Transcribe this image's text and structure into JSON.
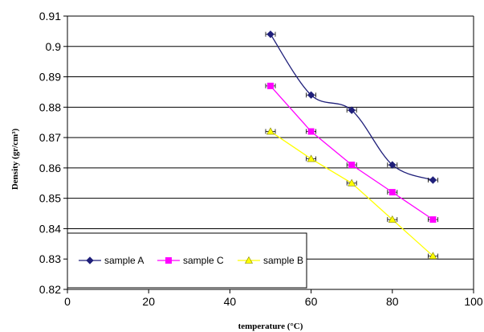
{
  "chart_data": {
    "type": "line",
    "title": "",
    "xlabel": "temperature (°C)",
    "ylabel": "Density (gr/cm³)",
    "xlim": [
      0,
      100
    ],
    "ylim": [
      0.82,
      0.91
    ],
    "x_ticks": [
      "0",
      "20",
      "40",
      "60",
      "80",
      "100"
    ],
    "y_ticks": [
      "0.82",
      "0.83",
      "0.84",
      "0.85",
      "0.86",
      "0.87",
      "0.88",
      "0.89",
      "0.9",
      "0.91"
    ],
    "grid": "horizontal",
    "legend_placement": "bottom-left",
    "series": [
      {
        "name": "sample A",
        "color": "#1F1F7A",
        "marker": "diamond",
        "smooth": true,
        "x": [
          50,
          60,
          70,
          80,
          90
        ],
        "values": [
          0.904,
          0.884,
          0.879,
          0.861,
          0.856
        ]
      },
      {
        "name": "sample C",
        "color": "#FF00FF",
        "marker": "square",
        "smooth": false,
        "x": [
          50,
          60,
          70,
          80,
          90
        ],
        "values": [
          0.887,
          0.872,
          0.861,
          0.852,
          0.843
        ]
      },
      {
        "name": "sample B",
        "color": "#FFFF00",
        "marker": "triangle",
        "smooth": false,
        "x": [
          50,
          60,
          70,
          80,
          90
        ],
        "values": [
          0.872,
          0.863,
          0.855,
          0.843,
          0.831
        ]
      }
    ]
  }
}
